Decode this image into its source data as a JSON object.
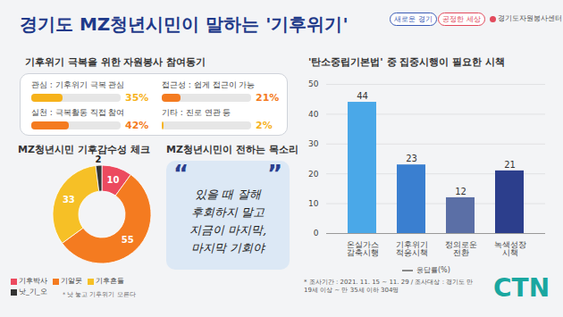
{
  "header": {
    "title": "경기도 MZ청년시민이 말하는 '기후위기'",
    "logos": [
      "새로운 경기",
      "공정한 세상",
      "경기도자원봉사센터"
    ]
  },
  "chart_data": [
    {
      "type": "bar",
      "orientation": "horizontal",
      "title": "기후위기 극복을 위한 자원봉사 참여동기",
      "categories": [
        "관심 : 기후위기 극복 관심",
        "접근성 : 쉽게 접근이 가능",
        "실천 : 극복활동 직접 참여",
        "기타 : 진로 연관 등"
      ],
      "values": [
        35,
        21,
        42,
        2
      ],
      "value_labels": [
        "35%",
        "21%",
        "42%",
        "2%"
      ],
      "colors": [
        "#f6b21b",
        "#f47b20",
        "#f47b20",
        "#f6b21b"
      ],
      "xlim": [
        0,
        100
      ],
      "tick_labels": false,
      "data_labels": true
    },
    {
      "type": "donut",
      "title": "MZ청년시민 기후감수성 체크",
      "categories": [
        "기후박사",
        "기알못",
        "기후흔들",
        "낫_기_오"
      ],
      "values": [
        10,
        55,
        33,
        2
      ],
      "colors": [
        "#ec4a5f",
        "#f47b20",
        "#f6c026",
        "#333333"
      ],
      "data_labels": true,
      "legend": "bottom",
      "annotations": [
        "* 낫 놓고 기후위기 모른다"
      ]
    },
    {
      "type": "bar",
      "title": "'탄소중립기본법' 중 집중시행이 필요한 시책",
      "categories": [
        "온실가스감축시행",
        "기후위기 적응시책",
        "정의로운 전환",
        "녹색성장 시책"
      ],
      "series": [
        {
          "name": "응답률(%)",
          "colors": [
            "#4aa8e8",
            "#3a7fd0",
            "#5b6fa6",
            "#2c3e8c"
          ],
          "values": [
            44,
            23,
            12,
            21
          ]
        }
      ],
      "ylim": [
        0,
        50
      ],
      "yticks": [
        0,
        10,
        20,
        30,
        40,
        50
      ],
      "grid": true,
      "data_labels": true,
      "legend": "bottom"
    }
  ],
  "quote": {
    "title": "MZ청년시민이 전하는 목소리",
    "quote_marks": [
      "“",
      "”"
    ],
    "lines": [
      "있을 때 잘해",
      "후회하지 말고",
      "지금이 마지막,",
      "마지막 기회야"
    ]
  },
  "footnote": "* 조사기간 : 2021. 11. 15 ~ 11. 29 / 조사대상 : 경기도 만 19세 이상 ~ 만 35세 이하 304명",
  "watermark": "CTN"
}
